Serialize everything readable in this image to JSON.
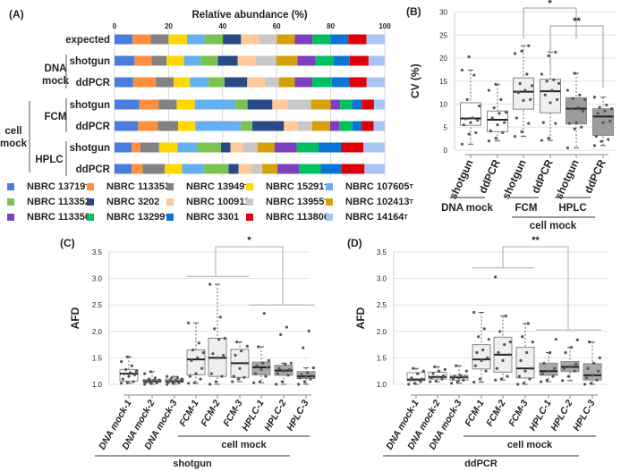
{
  "panel_labels": {
    "a": "(A)",
    "b": "(B)",
    "c": "(C)",
    "d": "(D)"
  },
  "chart_data": [
    {
      "type": "bar",
      "stacked": true,
      "orientation": "horizontal",
      "title": "Relative abundance (%)",
      "xlim": [
        0,
        100
      ],
      "xticks": [
        0,
        20,
        40,
        60,
        80,
        100
      ],
      "grid": true,
      "rows": [
        {
          "label": "expected",
          "group": "",
          "values": [
            6.7,
            6.7,
            6.6,
            6.8,
            6.6,
            6.7,
            6.7,
            6.6,
            6.7,
            6.6,
            6.6,
            6.6,
            6.6,
            6.7,
            6.8
          ]
        },
        {
          "label": "shotgun",
          "group": "DNA mock",
          "values": [
            7.4,
            6.3,
            5.6,
            6.4,
            6.2,
            6.3,
            7.4,
            6.7,
            7.5,
            7.9,
            6.7,
            6.6,
            6.0,
            7.0,
            6.0
          ]
        },
        {
          "label": "ddPCR",
          "group": "DNA mock",
          "values": [
            6.9,
            8.4,
            6.6,
            6.0,
            6.8,
            6.0,
            8.4,
            6.6,
            5.1,
            5.9,
            6.5,
            7.2,
            6.4,
            6.5,
            6.7
          ]
        },
        {
          "label": "shotgun",
          "group": "FCM",
          "values": [
            9.2,
            7.1,
            6.7,
            6.7,
            15.1,
            4.4,
            9.2,
            5.6,
            8.7,
            7.3,
            3.5,
            4.4,
            3.6,
            4.5,
            4.0
          ]
        },
        {
          "label": "ddPCR",
          "group": "FCM",
          "values": [
            8.7,
            7.3,
            7.5,
            6.4,
            16.7,
            4.4,
            11.7,
            5.1,
            5.3,
            6.7,
            3.4,
            4.8,
            3.4,
            4.5,
            4.1
          ]
        },
        {
          "label": "shotgun",
          "group": "HPLC",
          "values": [
            6.3,
            3.3,
            6.9,
            6.8,
            7.2,
            8.9,
            3.5,
            4.8,
            5.2,
            6.3,
            8.2,
            8.1,
            8.3,
            8.3,
            7.9
          ]
        },
        {
          "label": "ddPCR",
          "group": "HPLC",
          "values": [
            6.3,
            4.1,
            8.2,
            6.4,
            8.2,
            9.0,
            3.7,
            4.7,
            4.1,
            5.6,
            7.9,
            8.1,
            7.8,
            8.4,
            7.5
          ]
        }
      ],
      "group_labels": {
        "dna": "DNA",
        "dna2": "mock",
        "fcm": "FCM",
        "hplc": "HPLC",
        "cell": "cell",
        "cell2": "mock"
      },
      "legend_placement": "bottom",
      "series": [
        {
          "name": "NBRC 13719",
          "sup": "T",
          "color": "#4a7ede"
        },
        {
          "name": "NBRC 113353",
          "sup": "",
          "color": "#ff8f3f"
        },
        {
          "name": "NBRC 13949",
          "sup": "T",
          "color": "#828282"
        },
        {
          "name": "NBRC 15291",
          "sup": "T",
          "color": "#ffd800"
        },
        {
          "name": "NBRC 107605",
          "sup": "T",
          "color": "#64b0f0"
        },
        {
          "name": "NBRC 113352",
          "sup": "",
          "color": "#7cc250"
        },
        {
          "name": "NBRC 3202",
          "sup": "",
          "color": "#2a4a87"
        },
        {
          "name": "NBRC 100911",
          "sup": "T",
          "color": "#ffc99a"
        },
        {
          "name": "NBRC 13955",
          "sup": "T",
          "color": "#c8c8c8"
        },
        {
          "name": "NBRC 102413",
          "sup": "T",
          "color": "#d4a10a"
        },
        {
          "name": "NBRC 113350",
          "sup": "",
          "color": "#7b3fbf"
        },
        {
          "name": "NBRC 13299",
          "sup": "T",
          "color": "#00c060"
        },
        {
          "name": "NBRC 3301",
          "sup": "",
          "color": "#0a74d4"
        },
        {
          "name": "NBRC 113806",
          "sup": "",
          "color": "#e0000a"
        },
        {
          "name": "NBRC 14164",
          "sup": "T",
          "color": "#a8c4f4"
        }
      ]
    },
    {
      "type": "box",
      "ylabel": "CV (%)",
      "ylim": [
        0,
        30
      ],
      "yticks": [
        0,
        5,
        10,
        15,
        20,
        25,
        30
      ],
      "grid": true,
      "categories": [
        "shotgun",
        "ddPCR",
        "shotgun",
        "ddPCR",
        "shotgun",
        "ddPCR"
      ],
      "groups": [
        {
          "label": "DNA mock"
        },
        {
          "label": "FCM"
        },
        {
          "label": "HPLC"
        }
      ],
      "supergroup": "cell mock",
      "boxes": [
        {
          "min": 1.3,
          "q1": 5.4,
          "median": 6.9,
          "q3": 10.3,
          "max": 17.4,
          "fill": "#ffffff",
          "points": [
            1.3,
            3.5,
            3.8,
            5.5,
            6,
            6.5,
            6.8,
            7,
            9.6,
            11,
            16.3,
            17.4,
            20.3
          ]
        },
        {
          "min": 2,
          "q1": 4,
          "median": 6.6,
          "q3": 8.5,
          "max": 14.3,
          "fill": "#ffffff",
          "points": [
            2,
            2.6,
            3.8,
            4.2,
            5.5,
            6,
            7,
            8,
            8.2,
            9.2,
            11,
            13,
            14.3
          ]
        },
        {
          "min": 3,
          "q1": 8.9,
          "median": 12.7,
          "q3": 15.7,
          "max": 22.7,
          "fill": "#efefef",
          "points": [
            3,
            4,
            5.8,
            7,
            10.8,
            11,
            12.5,
            13,
            14,
            14.5,
            16.5,
            21,
            21.5,
            22.7
          ]
        },
        {
          "min": 2.1,
          "q1": 8.1,
          "median": 12.8,
          "q3": 15.4,
          "max": 21.3,
          "fill": "#efefef",
          "points": [
            2.1,
            2.6,
            5.8,
            6,
            10.3,
            11,
            12,
            13,
            14.5,
            15,
            15.3,
            16.5,
            20.5,
            21.3
          ]
        },
        {
          "min": 0.5,
          "q1": 5.7,
          "median": 9,
          "q3": 11.4,
          "max": 16.7,
          "fill": "#9c9c9c",
          "points": [
            0.5,
            4.6,
            5,
            5.8,
            6,
            8.5,
            9,
            9.2,
            11,
            11.2,
            12,
            13,
            16.7
          ]
        },
        {
          "min": 1,
          "q1": 3.2,
          "median": 7.3,
          "q3": 9,
          "max": 11.5,
          "fill": "#9c9c9c",
          "points": [
            1,
            1.9,
            2.3,
            3,
            6,
            6.3,
            8,
            8.5,
            9,
            9.3,
            9.8,
            11.5
          ]
        }
      ],
      "significance": [
        {
          "from": 2,
          "to": 4,
          "label": "*"
        },
        {
          "from": 3,
          "to": 5,
          "label": "**"
        }
      ]
    },
    {
      "type": "box",
      "ylabel": "AFD",
      "ylim": [
        1.0,
        3.5
      ],
      "yticks": [
        "1.0",
        "1.5",
        "2.0",
        "2.5",
        "3.0",
        "3.5"
      ],
      "grid": true,
      "categories": [
        "DNA mock-1",
        "DNA mock-2",
        "DNA mock-3",
        "FCM-1",
        "FCM-2",
        "FCM-3",
        "HPLC-1",
        "HPLC-2",
        "HPLC-3"
      ],
      "group_label": "cell mock",
      "xlabel": "shotgun",
      "boxes": [
        {
          "min": 1.02,
          "q1": 1.06,
          "median": 1.2,
          "q3": 1.28,
          "max": 1.52,
          "fill": "#ffffff",
          "points": [
            1.02,
            1.03,
            1.05,
            1.1,
            1.15,
            1.18,
            1.2,
            1.22,
            1.25,
            1.28,
            1.35,
            1.43,
            1.52
          ]
        },
        {
          "min": 1.0,
          "q1": 1.04,
          "median": 1.06,
          "q3": 1.09,
          "max": 1.24,
          "fill": "#ffffff",
          "points": [
            1.0,
            1.02,
            1.03,
            1.04,
            1.05,
            1.05,
            1.06,
            1.07,
            1.08,
            1.1,
            1.12,
            1.2,
            1.24
          ]
        },
        {
          "min": 1.0,
          "q1": 1.04,
          "median": 1.06,
          "q3": 1.1,
          "max": 1.15,
          "fill": "#ffffff",
          "points": [
            1.0,
            1.02,
            1.03,
            1.04,
            1.05,
            1.06,
            1.07,
            1.08,
            1.1,
            1.12,
            1.13,
            1.15
          ]
        },
        {
          "min": 1.02,
          "q1": 1.18,
          "median": 1.47,
          "q3": 1.65,
          "max": 2.16,
          "fill": "#efefef",
          "points": [
            1.02,
            1.03,
            1.1,
            1.15,
            1.2,
            1.3,
            1.45,
            1.5,
            1.6,
            1.65,
            1.78,
            2.16
          ]
        },
        {
          "min": 1.0,
          "q1": 1.15,
          "median": 1.5,
          "q3": 1.87,
          "max": 2.89,
          "fill": "#efefef",
          "points": [
            1.0,
            1.05,
            1.15,
            1.2,
            1.5,
            1.55,
            1.58,
            1.85,
            1.87,
            2.05,
            2.27,
            2.89
          ]
        },
        {
          "min": 1.05,
          "q1": 1.13,
          "median": 1.4,
          "q3": 1.66,
          "max": 1.8,
          "fill": "#efefef",
          "points": [
            1.05,
            1.1,
            1.13,
            1.15,
            1.3,
            1.4,
            1.55,
            1.63,
            1.72,
            1.8
          ]
        },
        {
          "min": 1.03,
          "q1": 1.18,
          "median": 1.32,
          "q3": 1.42,
          "max": 1.71,
          "fill": "#a8a8a8",
          "points": [
            1.03,
            1.05,
            1.15,
            1.2,
            1.28,
            1.32,
            1.35,
            1.4,
            1.45,
            1.71,
            2.34
          ]
        },
        {
          "min": 1.0,
          "q1": 1.17,
          "median": 1.26,
          "q3": 1.36,
          "max": 1.4,
          "fill": "#a8a8a8",
          "points": [
            1.0,
            1.05,
            1.17,
            1.2,
            1.25,
            1.28,
            1.3,
            1.38,
            1.4,
            1.94,
            2.08
          ]
        },
        {
          "min": 1.0,
          "q1": 1.11,
          "median": 1.15,
          "q3": 1.24,
          "max": 1.31,
          "fill": "#a8a8a8",
          "points": [
            1.0,
            1.05,
            1.1,
            1.12,
            1.15,
            1.16,
            1.18,
            1.22,
            1.31,
            1.69,
            2.01
          ]
        }
      ],
      "significance": {
        "label": "*",
        "left_level": 3.04,
        "right_level": 2.5,
        "top": 3.6
      }
    },
    {
      "type": "box",
      "ylabel": "AFD",
      "ylim": [
        1.0,
        3.5
      ],
      "yticks": [
        "1.0",
        "1.5",
        "2.0",
        "2.5",
        "3.0",
        "3.5"
      ],
      "grid": true,
      "categories": [
        "DNA mock-1",
        "DNA mock-2",
        "DNA mock-3",
        "FCM-1",
        "FCM-2",
        "FCM-3",
        "HPLC-1",
        "HPLC-2",
        "HPLC-3"
      ],
      "group_label": "cell mock",
      "xlabel": "ddPCR",
      "boxes": [
        {
          "min": 1.0,
          "q1": 1.07,
          "median": 1.09,
          "q3": 1.22,
          "max": 1.3,
          "fill": "#ffffff",
          "points": [
            1.0,
            1.02,
            1.05,
            1.08,
            1.09,
            1.1,
            1.12,
            1.2,
            1.25,
            1.3
          ]
        },
        {
          "min": 1.05,
          "q1": 1.1,
          "median": 1.14,
          "q3": 1.23,
          "max": 1.33,
          "fill": "#ffffff",
          "points": [
            1.05,
            1.06,
            1.1,
            1.12,
            1.14,
            1.16,
            1.2,
            1.25,
            1.28,
            1.33
          ]
        },
        {
          "min": 1.02,
          "q1": 1.08,
          "median": 1.13,
          "q3": 1.17,
          "max": 1.35,
          "fill": "#ffffff",
          "points": [
            1.02,
            1.05,
            1.08,
            1.1,
            1.12,
            1.14,
            1.15,
            1.17,
            1.25,
            1.35
          ]
        },
        {
          "min": 1.04,
          "q1": 1.29,
          "median": 1.47,
          "q3": 1.75,
          "max": 2.36,
          "fill": "#efefef",
          "points": [
            1.04,
            1.1,
            1.25,
            1.35,
            1.45,
            1.5,
            1.6,
            1.65,
            1.85,
            1.9,
            2.05,
            2.36
          ]
        },
        {
          "min": 1.08,
          "q1": 1.23,
          "median": 1.56,
          "q3": 1.89,
          "max": 2.29,
          "fill": "#efefef",
          "points": [
            1.08,
            1.1,
            1.15,
            1.3,
            1.45,
            1.56,
            1.6,
            1.75,
            1.8,
            2.0,
            2.29,
            3.03
          ]
        },
        {
          "min": 1.0,
          "q1": 1.12,
          "median": 1.3,
          "q3": 1.7,
          "max": 2.15,
          "fill": "#efefef",
          "points": [
            1.0,
            1.02,
            1.1,
            1.15,
            1.25,
            1.3,
            1.45,
            1.6,
            1.8,
            1.9,
            2.15
          ]
        },
        {
          "min": 1.05,
          "q1": 1.17,
          "median": 1.25,
          "q3": 1.4,
          "max": 1.6,
          "fill": "#a8a8a8",
          "points": [
            1.05,
            1.08,
            1.15,
            1.2,
            1.25,
            1.3,
            1.4,
            1.6,
            1.85
          ]
        },
        {
          "min": 1.07,
          "q1": 1.24,
          "median": 1.33,
          "q3": 1.43,
          "max": 1.7,
          "fill": "#a8a8a8",
          "points": [
            1.07,
            1.15,
            1.25,
            1.3,
            1.33,
            1.38,
            1.6,
            1.7,
            1.84
          ]
        },
        {
          "min": 1.0,
          "q1": 1.08,
          "median": 1.17,
          "q3": 1.39,
          "max": 1.8,
          "fill": "#a8a8a8",
          "points": [
            1.0,
            1.02,
            1.08,
            1.12,
            1.17,
            1.25,
            1.3,
            1.4,
            1.5,
            1.8
          ]
        }
      ],
      "significance": {
        "label": "**",
        "left_level": 3.2,
        "right_level": 2.03,
        "top": 3.6
      }
    }
  ]
}
